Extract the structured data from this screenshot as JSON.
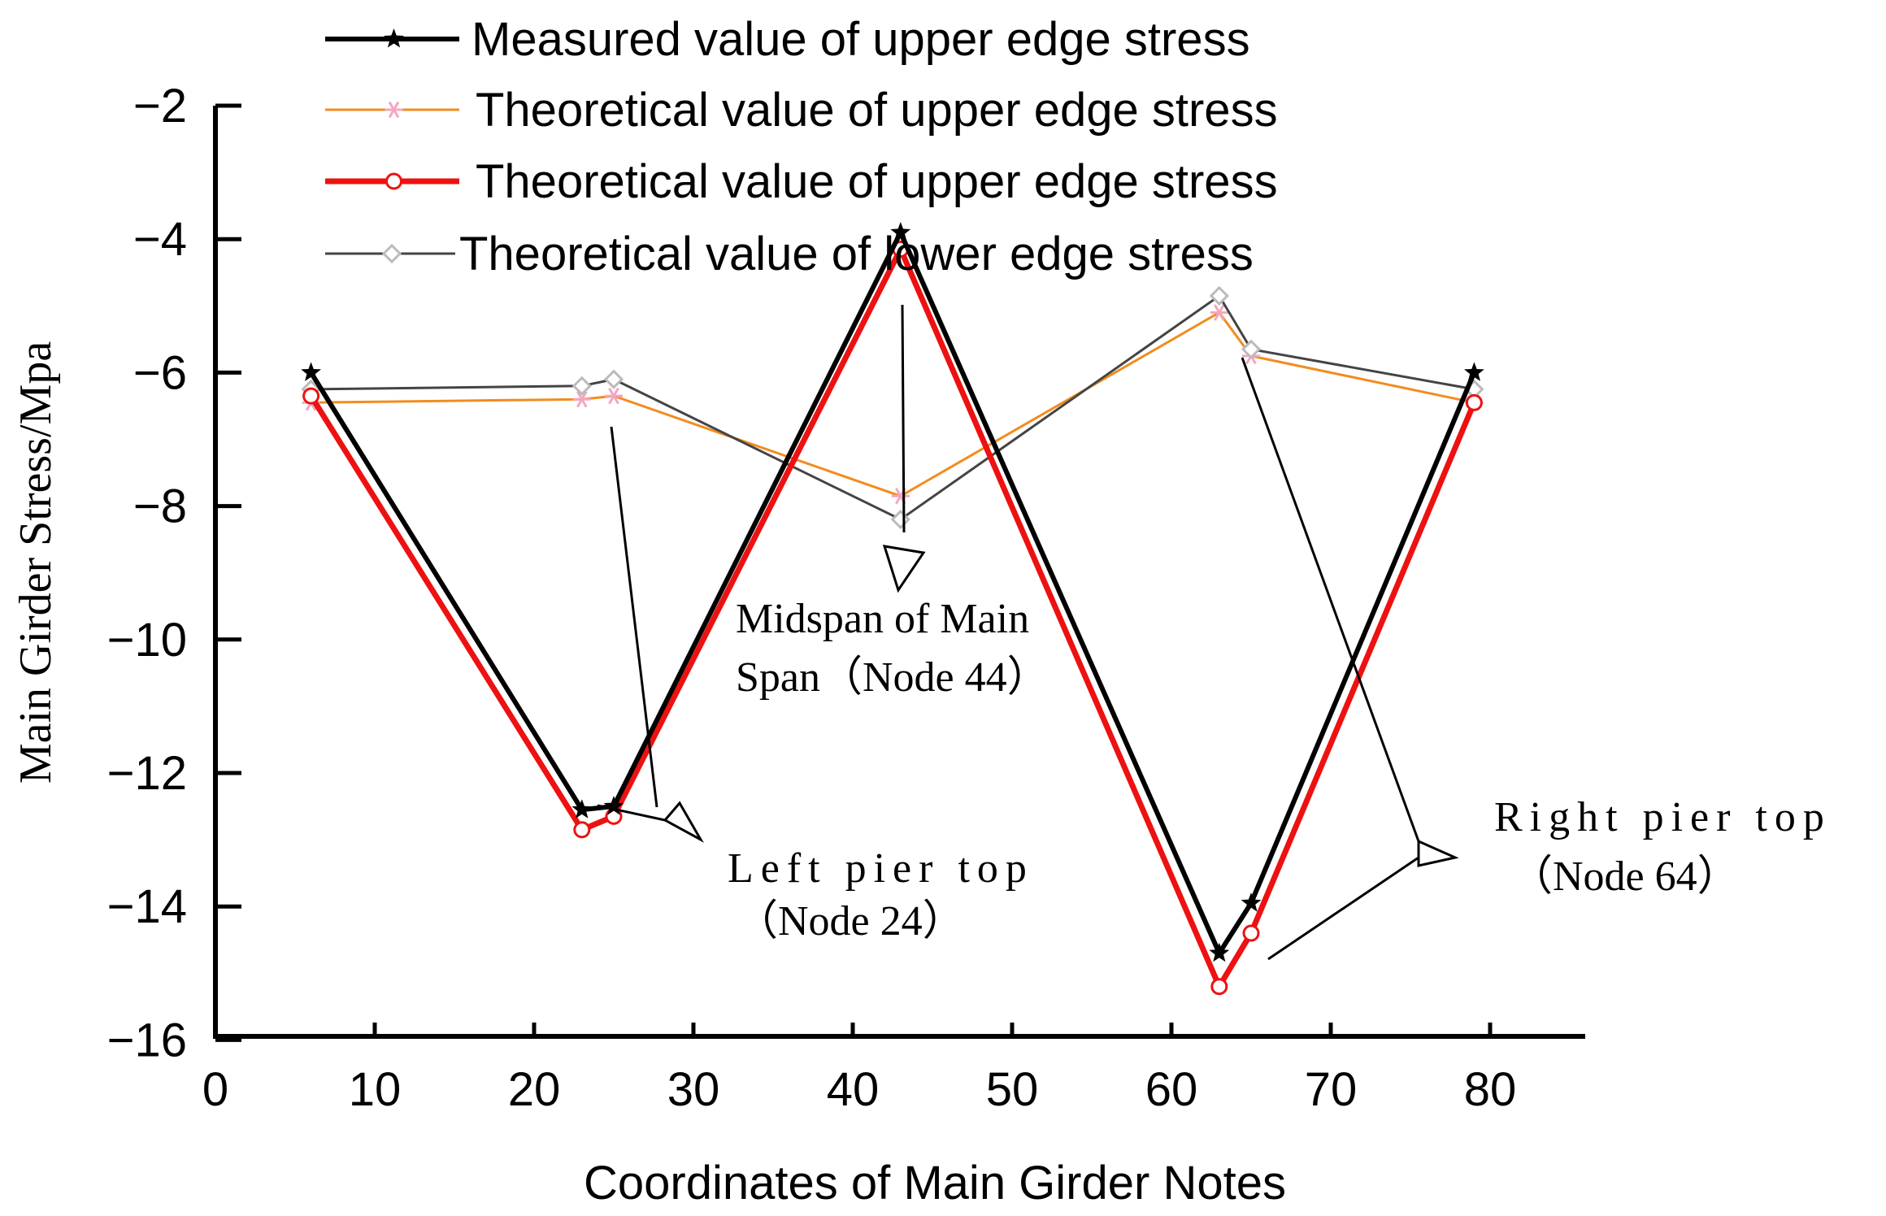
{
  "chart_data": {
    "type": "line",
    "xlabel": "Coordinates of Main Girder Notes",
    "ylabel": "Main Girder Stress/Mpa",
    "xlim": [
      0,
      85
    ],
    "ylim": [
      -16,
      -2
    ],
    "xticks": [
      0,
      10,
      20,
      30,
      40,
      50,
      60,
      70,
      80
    ],
    "yticks": [
      -2,
      -4,
      -6,
      -8,
      -10,
      -12,
      -14,
      -16
    ],
    "xtick_labels": [
      "0",
      "10",
      "20",
      "30",
      "40",
      "50",
      "60",
      "70",
      "80"
    ],
    "ytick_labels": [
      "−2",
      "−4",
      "−6",
      "−8",
      "−10",
      "−12",
      "−14",
      "−16"
    ],
    "legend_position": "top",
    "series": [
      {
        "name": "Measured value of upper edge stress",
        "color": "#000000",
        "marker": "star",
        "x": [
          6,
          23,
          25,
          43,
          63,
          65,
          79
        ],
        "y": [
          -6.0,
          -12.55,
          -12.5,
          -3.9,
          -14.7,
          -13.95,
          -6.0
        ]
      },
      {
        "name": "Theoretical value of upper edge stress",
        "color": "#f28c1f",
        "marker_color": "#f4a6c0",
        "marker": "asterisk",
        "x": [
          6,
          23,
          25,
          43,
          63,
          65,
          79
        ],
        "y": [
          -6.45,
          -6.4,
          -6.35,
          -7.85,
          -5.1,
          -5.75,
          -6.45
        ]
      },
      {
        "name": "Theoretical value of upper edge stress",
        "color": "#ee1111",
        "marker": "circle",
        "x": [
          6,
          23,
          25,
          43,
          63,
          65,
          79
        ],
        "y": [
          -6.35,
          -12.85,
          -12.65,
          -4.15,
          -15.2,
          -14.4,
          -6.45
        ]
      },
      {
        "name": "Theoretical value of lower edge stress",
        "color": "#444444",
        "marker_color": "#bbbbbb",
        "marker": "diamond",
        "x": [
          6,
          23,
          25,
          43,
          63,
          65,
          79
        ],
        "y": [
          -6.25,
          -6.2,
          -6.1,
          -8.2,
          -4.85,
          -5.65,
          -6.25
        ]
      }
    ],
    "annotations": [
      {
        "lines": [
          "Midspan of Main",
          "Span（Node 44）"
        ],
        "target": [
          43,
          -8.9
        ]
      },
      {
        "lines": [
          "Left pier top",
          "（Node 24）"
        ],
        "target": [
          29,
          -12.8
        ]
      },
      {
        "lines": [
          "Right pier top",
          "（Node 64）"
        ],
        "target": [
          77,
          -13.2
        ]
      }
    ]
  }
}
